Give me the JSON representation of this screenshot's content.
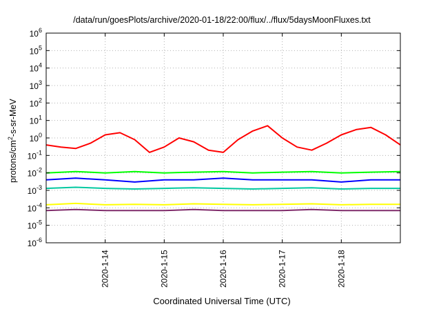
{
  "chart_data": {
    "type": "line",
    "title": "/data/run/goesPlots/archive/2020-01-18/22:00/flux/../flux/5daysMoonFluxes.txt",
    "xlabel": "Coordinated Universal Time (UTC)",
    "ylabel_main": "protons/cm",
    "ylabel_sup": "2",
    "ylabel_rest": "-s-sr-MeV",
    "yscale": "log",
    "ylim": [
      1e-06,
      1000000.0
    ],
    "ytick_exponents": [
      -6,
      -5,
      -4,
      -3,
      -2,
      -1,
      0,
      1,
      2,
      3,
      4,
      5,
      6
    ],
    "ytick_base": "10",
    "xlim": [
      "2020-01-13 00:00",
      "2020-01-19 00:00"
    ],
    "xticks": [
      "2020-1-14",
      "2020-1-15",
      "2020-1-16",
      "2020-1-17",
      "2020-1-18"
    ],
    "grid": true,
    "series": [
      {
        "color": "#ff0000",
        "x": [
          "2020-01-13 00:00",
          "2020-01-13 06:00",
          "2020-01-13 12:00",
          "2020-01-13 18:00",
          "2020-01-14 00:00",
          "2020-01-14 06:00",
          "2020-01-14 12:00",
          "2020-01-14 18:00",
          "2020-01-15 00:00",
          "2020-01-15 06:00",
          "2020-01-15 12:00",
          "2020-01-15 18:00",
          "2020-01-16 00:00",
          "2020-01-16 06:00",
          "2020-01-16 12:00",
          "2020-01-16 18:00",
          "2020-01-17 00:00",
          "2020-01-17 06:00",
          "2020-01-17 12:00",
          "2020-01-17 18:00",
          "2020-01-18 00:00",
          "2020-01-18 06:00",
          "2020-01-18 12:00",
          "2020-01-18 18:00",
          "2020-01-19 00:00"
        ],
        "y": [
          0.4,
          0.3,
          0.25,
          0.5,
          1.5,
          2.0,
          0.8,
          0.15,
          0.3,
          1.0,
          0.6,
          0.2,
          0.15,
          0.8,
          2.5,
          5.0,
          1.0,
          0.3,
          0.2,
          0.5,
          1.5,
          3.0,
          4.0,
          1.5,
          0.4
        ]
      },
      {
        "color": "#00ff00",
        "x": [
          "2020-01-13 00:00",
          "2020-01-13 12:00",
          "2020-01-14 00:00",
          "2020-01-14 12:00",
          "2020-01-15 00:00",
          "2020-01-15 12:00",
          "2020-01-16 00:00",
          "2020-01-16 12:00",
          "2020-01-17 00:00",
          "2020-01-17 12:00",
          "2020-01-18 00:00",
          "2020-01-18 12:00",
          "2020-01-19 00:00"
        ],
        "y": [
          0.01,
          0.012,
          0.01,
          0.012,
          0.01,
          0.011,
          0.012,
          0.01,
          0.011,
          0.012,
          0.01,
          0.011,
          0.012
        ]
      },
      {
        "color": "#0000ff",
        "x": [
          "2020-01-13 00:00",
          "2020-01-13 12:00",
          "2020-01-14 00:00",
          "2020-01-14 12:00",
          "2020-01-15 00:00",
          "2020-01-15 12:00",
          "2020-01-16 00:00",
          "2020-01-16 12:00",
          "2020-01-17 00:00",
          "2020-01-17 12:00",
          "2020-01-18 00:00",
          "2020-01-18 12:00",
          "2020-01-19 00:00"
        ],
        "y": [
          0.004,
          0.005,
          0.004,
          0.003,
          0.004,
          0.004,
          0.005,
          0.004,
          0.004,
          0.004,
          0.003,
          0.004,
          0.004
        ]
      },
      {
        "color": "#00c8a0",
        "x": [
          "2020-01-13 00:00",
          "2020-01-13 12:00",
          "2020-01-14 00:00",
          "2020-01-14 12:00",
          "2020-01-15 00:00",
          "2020-01-15 12:00",
          "2020-01-16 00:00",
          "2020-01-16 12:00",
          "2020-01-17 00:00",
          "2020-01-17 12:00",
          "2020-01-18 00:00",
          "2020-01-18 12:00",
          "2020-01-19 00:00"
        ],
        "y": [
          0.0013,
          0.0015,
          0.0013,
          0.0012,
          0.0013,
          0.0014,
          0.0013,
          0.0012,
          0.0013,
          0.0014,
          0.0012,
          0.0013,
          0.0013
        ]
      },
      {
        "color": "#ffff00",
        "x": [
          "2020-01-13 00:00",
          "2020-01-13 12:00",
          "2020-01-14 00:00",
          "2020-01-14 12:00",
          "2020-01-15 00:00",
          "2020-01-15 12:00",
          "2020-01-16 00:00",
          "2020-01-16 12:00",
          "2020-01-17 00:00",
          "2020-01-17 12:00",
          "2020-01-18 00:00",
          "2020-01-18 12:00",
          "2020-01-19 00:00"
        ],
        "y": [
          0.00015,
          0.00018,
          0.00015,
          0.00016,
          0.00015,
          0.00017,
          0.00016,
          0.00015,
          0.00016,
          0.00017,
          0.00015,
          0.00016,
          0.00016
        ]
      },
      {
        "color": "#7f2a6a",
        "x": [
          "2020-01-13 00:00",
          "2020-01-13 12:00",
          "2020-01-14 00:00",
          "2020-01-14 12:00",
          "2020-01-15 00:00",
          "2020-01-15 12:00",
          "2020-01-16 00:00",
          "2020-01-16 12:00",
          "2020-01-17 00:00",
          "2020-01-17 12:00",
          "2020-01-18 00:00",
          "2020-01-18 12:00",
          "2020-01-19 00:00"
        ],
        "y": [
          7e-05,
          8e-05,
          7e-05,
          7e-05,
          7e-05,
          8e-05,
          7e-05,
          7e-05,
          7e-05,
          8e-05,
          7e-05,
          7e-05,
          7e-05
        ]
      }
    ]
  }
}
